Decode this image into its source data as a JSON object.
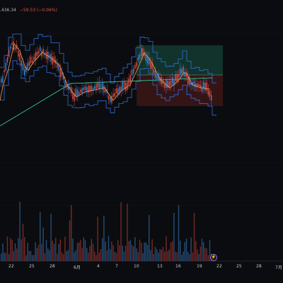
{
  "header": {
    "ohlc_value": ".436.34",
    "change": "−59.53 (−0.06%)"
  },
  "time_axis": {
    "labels": [
      "22",
      "25",
      "28",
      "6月",
      "4",
      "7",
      "10",
      "13",
      "16",
      "19",
      "22",
      "25",
      "28",
      "7月"
    ]
  },
  "badge": {
    "icon": "lightning-icon",
    "text": "⚡"
  },
  "colors": {
    "background": "#0b0c0f",
    "up": "#3d8bd9",
    "down": "#e0524c",
    "ma_fast": "#ff9a4a",
    "ma_slow": "#2ecc8a",
    "band": "#2f6fe0",
    "zone_green": "#12372f",
    "zone_red": "#3a1517"
  },
  "chart_data": {
    "type": "candlestick",
    "indicators": [
      "price_channel",
      "moving_average_fast",
      "moving_average_slow",
      "volume"
    ],
    "position_tool": {
      "entry_zone": "green-over-red",
      "note": ""
    },
    "volume": {
      "shown": true
    }
  }
}
